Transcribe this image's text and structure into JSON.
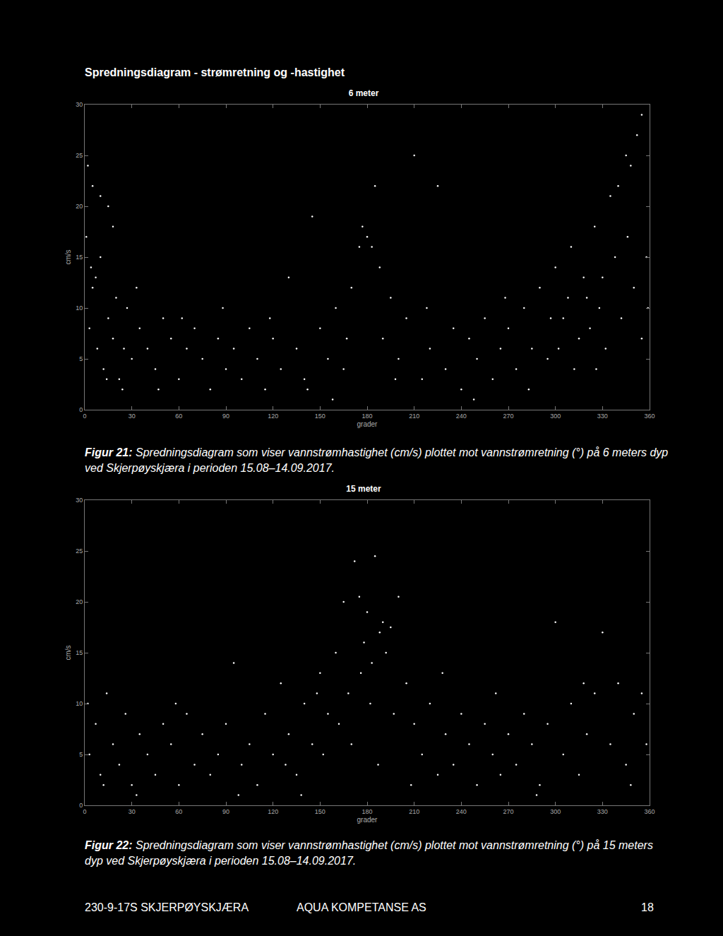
{
  "header": "Spredningsdiagram - strømretning og -hastighet",
  "chart_data": [
    {
      "type": "scatter",
      "title": "6 meter",
      "x_label": "grader",
      "y_label": "cm/s",
      "color": "#ffffff",
      "marker": "dot",
      "grid": false,
      "xlim": [
        0,
        360
      ],
      "xticks": [
        0,
        30,
        60,
        90,
        120,
        150,
        180,
        210,
        240,
        270,
        300,
        330,
        360
      ],
      "ylim": [
        0,
        30
      ],
      "yticks": [
        0,
        5,
        10,
        15,
        20,
        25,
        30
      ],
      "x": [
        3,
        5,
        8,
        10,
        12,
        15,
        18,
        20,
        22,
        25,
        27,
        30,
        2,
        5,
        10,
        15,
        18,
        1,
        4,
        7,
        35,
        40,
        45,
        50,
        55,
        60,
        65,
        70,
        75,
        80,
        85,
        90,
        95,
        100,
        105,
        110,
        115,
        120,
        125,
        130,
        135,
        140,
        145,
        150,
        155,
        160,
        165,
        170,
        175,
        177,
        180,
        183,
        185,
        188,
        190,
        195,
        200,
        205,
        210,
        215,
        220,
        225,
        230,
        235,
        240,
        245,
        250,
        255,
        260,
        265,
        270,
        275,
        280,
        285,
        290,
        295,
        300,
        305,
        310,
        315,
        320,
        325,
        330,
        335,
        340,
        345,
        348,
        352,
        355,
        358,
        302,
        308,
        312,
        318,
        322,
        328,
        332,
        338,
        342,
        350,
        355,
        359,
        14,
        24,
        33,
        47,
        62,
        88,
        118,
        142,
        158,
        167,
        198,
        218,
        248,
        268,
        283,
        297,
        326,
        346
      ],
      "values": [
        8,
        12,
        6,
        15,
        4,
        9,
        7,
        11,
        3,
        6,
        10,
        5,
        24,
        22,
        21,
        20,
        18,
        17,
        14,
        13,
        8,
        6,
        4,
        9,
        7,
        3,
        6,
        8,
        5,
        2,
        7,
        4,
        6,
        3,
        8,
        5,
        2,
        7,
        4,
        13,
        6,
        3,
        19,
        8,
        5,
        10,
        4,
        12,
        16,
        18,
        17,
        16,
        22,
        14,
        7,
        11,
        5,
        9,
        25,
        3,
        6,
        22,
        4,
        8,
        2,
        7,
        5,
        9,
        3,
        6,
        8,
        4,
        10,
        6,
        12,
        5,
        14,
        9,
        16,
        7,
        11,
        18,
        13,
        21,
        22,
        25,
        24,
        27,
        29,
        15,
        6,
        11,
        4,
        13,
        8,
        10,
        6,
        15,
        9,
        12,
        7,
        10,
        3,
        2,
        12,
        2,
        9,
        10,
        9,
        2,
        1,
        7,
        3,
        10,
        1,
        11,
        2,
        9,
        4,
        17
      ]
    },
    {
      "type": "scatter",
      "title": "15 meter",
      "x_label": "grader",
      "y_label": "cm/s",
      "color": "#ffffff",
      "marker": "dot",
      "grid": false,
      "xlim": [
        0,
        360
      ],
      "xticks": [
        0,
        30,
        60,
        90,
        120,
        150,
        180,
        210,
        240,
        270,
        300,
        330,
        360
      ],
      "ylim": [
        0,
        30
      ],
      "yticks": [
        0,
        5,
        10,
        15,
        20,
        25,
        30
      ],
      "x": [
        3,
        7,
        10,
        14,
        18,
        22,
        26,
        30,
        35,
        40,
        45,
        50,
        55,
        60,
        65,
        70,
        75,
        80,
        85,
        90,
        95,
        100,
        105,
        110,
        115,
        120,
        125,
        130,
        135,
        140,
        145,
        150,
        155,
        160,
        165,
        168,
        172,
        175,
        178,
        180,
        183,
        185,
        188,
        190,
        195,
        200,
        205,
        210,
        215,
        220,
        225,
        230,
        235,
        240,
        245,
        250,
        255,
        260,
        265,
        270,
        275,
        280,
        285,
        290,
        295,
        300,
        305,
        310,
        315,
        320,
        325,
        330,
        335,
        340,
        345,
        350,
        355,
        358,
        2,
        12,
        162,
        170,
        176,
        182,
        187,
        192,
        197,
        152,
        138,
        128,
        33,
        58,
        98,
        148,
        208,
        228,
        262,
        288,
        318,
        348
      ],
      "values": [
        5,
        8,
        3,
        11,
        6,
        4,
        9,
        2,
        7,
        5,
        3,
        8,
        6,
        2,
        9,
        4,
        7,
        3,
        5,
        8,
        14,
        4,
        6,
        2,
        9,
        5,
        12,
        7,
        3,
        10,
        6,
        13,
        9,
        15,
        20,
        11,
        24,
        20.5,
        16,
        19,
        14,
        24.5,
        17,
        18,
        17.5,
        20.5,
        12,
        8,
        5,
        10,
        3,
        7,
        4,
        9,
        6,
        2,
        8,
        5,
        3,
        7,
        4,
        9,
        6,
        2,
        8,
        18,
        5,
        10,
        3,
        7,
        11,
        17,
        6,
        12,
        4,
        9,
        11,
        6,
        10,
        2,
        8,
        6,
        13,
        10,
        4,
        15,
        9,
        5,
        1,
        4,
        1,
        10,
        1,
        11,
        2,
        13,
        11,
        1,
        12,
        2
      ]
    }
  ],
  "captions": [
    {
      "label": "Figur 21:",
      "text": "Spredningsdiagram som viser vannstrømhastighet (cm/s) plottet mot vannstrømretning (°) på 6 meters dyp ved Skjerpøyskjæra i perioden 15.08–14.09.2017."
    },
    {
      "label": "Figur 22:",
      "text": "Spredningsdiagram som viser vannstrømhastighet (cm/s) plottet mot vannstrømretning (°) på 15 meters dyp ved Skjerpøyskjæra i perioden 15.08–14.09.2017."
    }
  ],
  "footer": {
    "left": "230-9-17S SKJERPØYSKJÆRA",
    "center": "AQUA KOMPETANSE AS",
    "right": "18"
  }
}
